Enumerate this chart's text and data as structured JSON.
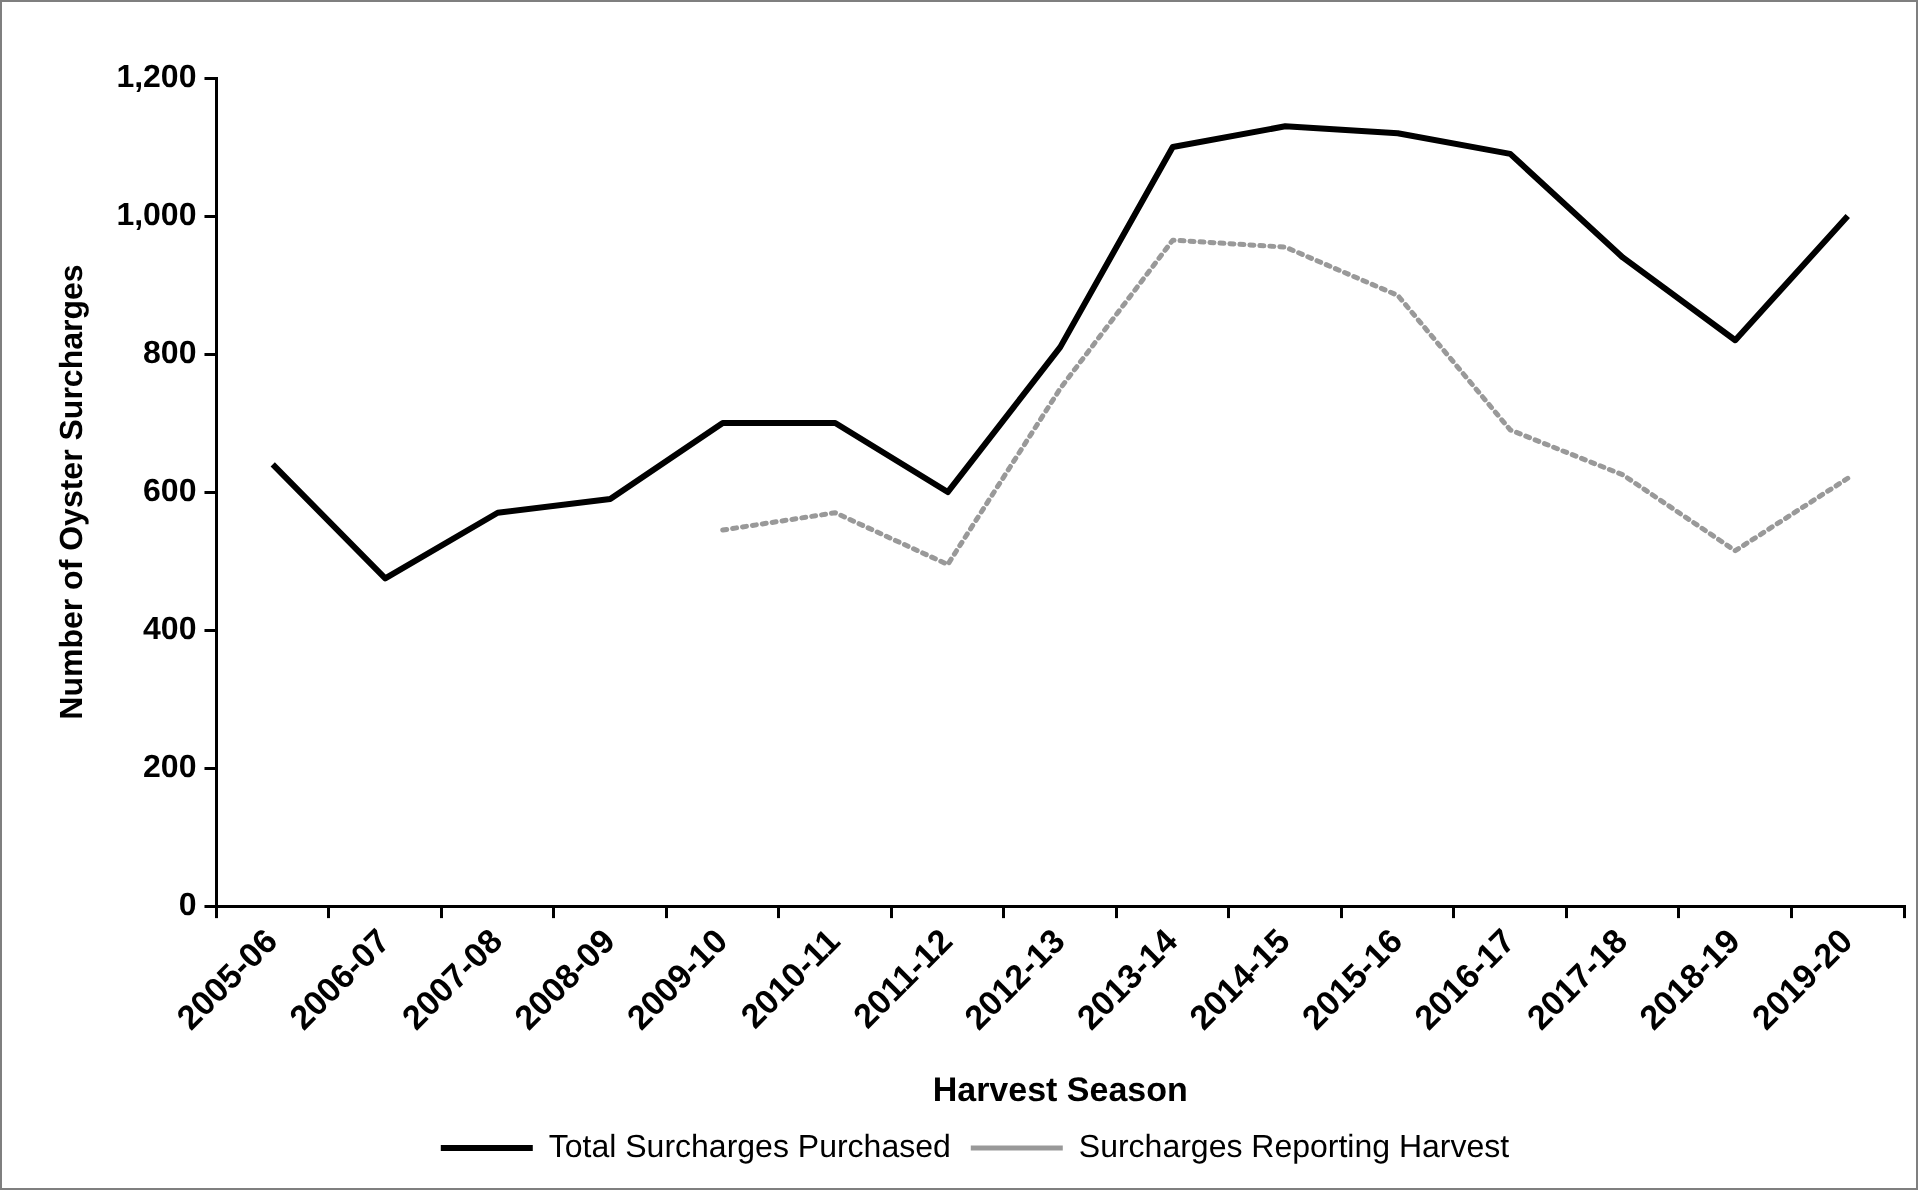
{
  "chart_data": {
    "type": "line",
    "xlabel": "Harvest Season",
    "ylabel": "Number of Oyster Surcharges",
    "categories": [
      "2005-06",
      "2006-07",
      "2007-08",
      "2008-09",
      "2009-10",
      "2010-11",
      "2011-12",
      "2012-13",
      "2013-14",
      "2014-15",
      "2015-16",
      "2016-17",
      "2017-18",
      "2018-19",
      "2019-20"
    ],
    "series": [
      {
        "name": "Total Surcharges Purchased",
        "color": "#000000",
        "line_style": "solid",
        "values": [
          640,
          475,
          570,
          590,
          700,
          700,
          600,
          810,
          1100,
          1130,
          1120,
          1090,
          940,
          820,
          1000
        ]
      },
      {
        "name": "Surcharges Reporting Harvest",
        "color": "#999999",
        "line_style": "dotted",
        "values": [
          null,
          null,
          null,
          null,
          545,
          570,
          495,
          750,
          965,
          955,
          885,
          690,
          625,
          515,
          620
        ]
      }
    ],
    "ylim": [
      0,
      1200
    ],
    "yticks": [
      0,
      200,
      400,
      600,
      800,
      {
        "value": 1000,
        "label": "1,000"
      },
      {
        "value": 1200,
        "label": "1,200"
      }
    ],
    "marker": "none",
    "legend": "bottom"
  }
}
